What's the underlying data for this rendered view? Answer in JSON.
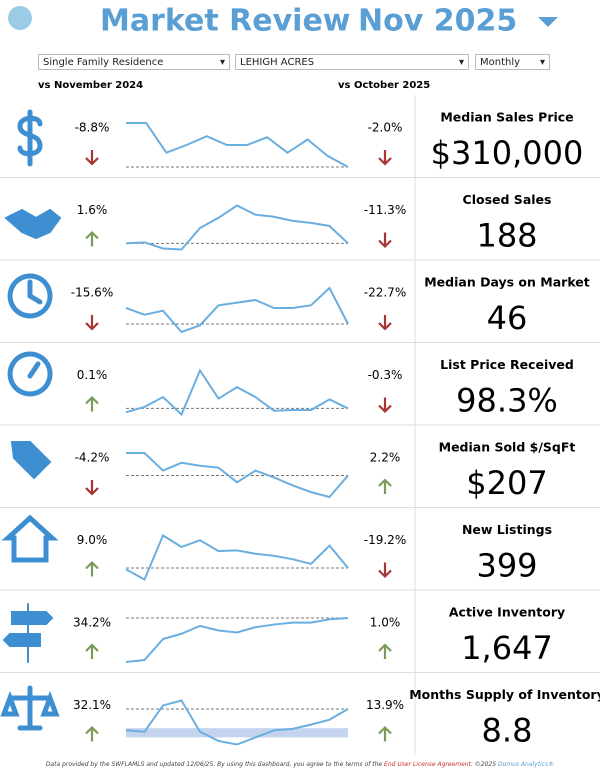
{
  "header": {
    "title": "Market Review",
    "period": "Nov 2025"
  },
  "filters": {
    "property_type": "Single Family Residence",
    "area": "LEHIGH ACRES",
    "interval": "Monthly"
  },
  "columns": {
    "yoy": "vs November 2024",
    "mom": "vs October 2025"
  },
  "metrics": [
    {
      "name": "Median Sales Price",
      "value": "$310,000",
      "yoy": "-8.8%",
      "mom": "-2.0%",
      "spark": [
        75,
        75,
        48,
        55,
        63,
        55,
        55,
        62,
        48,
        60,
        45,
        35
      ]
    },
    {
      "name": "Closed Sales",
      "value": "188",
      "yoy": "1.6%",
      "mom": "-11.3%",
      "spark": [
        40,
        41,
        35,
        34,
        55,
        65,
        77,
        68,
        66,
        62,
        60,
        57,
        40
      ]
    },
    {
      "name": "Median Days on Market",
      "value": "46",
      "yoy": "-15.6%",
      "mom": "-22.7%",
      "spark": [
        70,
        65,
        68,
        52,
        57,
        72,
        74,
        76,
        70,
        70,
        72,
        85,
        58
      ]
    },
    {
      "name": "List Price Received",
      "value": "98.3%",
      "yoy": "0.1%",
      "mom": "-0.3%",
      "spark": [
        40,
        47,
        60,
        37,
        95,
        58,
        73,
        60,
        42,
        43,
        43,
        57,
        45
      ]
    },
    {
      "name": "Median Sold $/SqFt",
      "value": "$207",
      "yoy": "-4.2%",
      "mom": "2.2%",
      "spark": [
        85,
        85,
        67,
        75,
        72,
        70,
        55,
        67,
        60,
        52,
        45,
        40,
        62
      ]
    },
    {
      "name": "New Listings",
      "value": "399",
      "yoy": "9.0%",
      "mom": "-19.2%",
      "spark": [
        45,
        30,
        95,
        78,
        88,
        72,
        73,
        68,
        65,
        60,
        53,
        80,
        47
      ]
    },
    {
      "name": "Active Inventory",
      "value": "1,647",
      "yoy": "34.2%",
      "mom": "1.0%",
      "spark": [
        35,
        38,
        70,
        78,
        90,
        83,
        80,
        88,
        92,
        95,
        95,
        100,
        102
      ]
    },
    {
      "name": "Months Supply of Inventory",
      "value": "8.8",
      "yoy": "32.1%",
      "mom": "13.9%",
      "spark": [
        40,
        38,
        75,
        82,
        38,
        25,
        20,
        30,
        40,
        42,
        48,
        55,
        70
      ],
      "band": [
        30,
        43
      ]
    }
  ],
  "footer": {
    "text": "Data provided by the SWFLAMLS and updated 12/06/25.  By using this dashboard, you agree to the terms of the",
    "link": "End User License Agreement.",
    "copyright": "©2025",
    "brand": "Domus Analytics®"
  }
}
